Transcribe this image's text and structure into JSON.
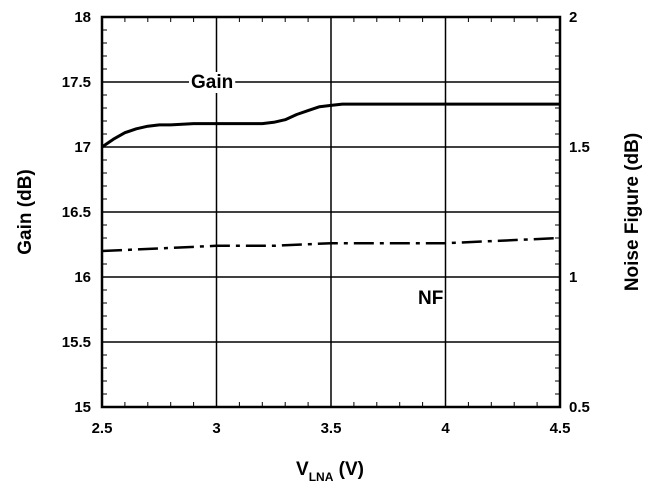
{
  "chart_data": {
    "type": "line",
    "title": "",
    "xlabel": "V",
    "xlabel_sub": "LNA",
    "xlabel_unit": " (V)",
    "ylabel_left": "Gain (dB)",
    "ylabel_right": "Noise Figure (dB)",
    "xlim": [
      2.5,
      4.5
    ],
    "ylim_left": [
      15,
      18
    ],
    "ylim_right": [
      0.5,
      2
    ],
    "x_ticks": [
      "2.5",
      "3",
      "3.5",
      "4",
      "4.5"
    ],
    "y_left_ticks": [
      "15",
      "15.5",
      "16",
      "16.5",
      "17",
      "17.5",
      "18"
    ],
    "y_right_ticks": [
      "0.5",
      "1",
      "1.5",
      "2"
    ],
    "grid": true,
    "series": [
      {
        "name": "Gain",
        "axis": "left",
        "style": "solid",
        "x": [
          2.5,
          2.55,
          2.6,
          2.65,
          2.7,
          2.75,
          2.8,
          2.9,
          3.0,
          3.1,
          3.2,
          3.25,
          3.3,
          3.35,
          3.4,
          3.45,
          3.5,
          3.55,
          3.6,
          3.8,
          4.0,
          4.2,
          4.4,
          4.5
        ],
        "values": [
          17.0,
          17.06,
          17.11,
          17.14,
          17.16,
          17.17,
          17.17,
          17.18,
          17.18,
          17.18,
          17.18,
          17.19,
          17.21,
          17.25,
          17.28,
          17.31,
          17.32,
          17.33,
          17.33,
          17.33,
          17.33,
          17.33,
          17.33,
          17.33
        ]
      },
      {
        "name": "NF",
        "axis": "right",
        "style": "dash-dot",
        "x": [
          2.5,
          2.75,
          3.0,
          3.25,
          3.5,
          3.75,
          4.0,
          4.25,
          4.5
        ],
        "values": [
          1.1,
          1.11,
          1.12,
          1.12,
          1.13,
          1.13,
          1.13,
          1.14,
          1.15
        ]
      }
    ]
  }
}
